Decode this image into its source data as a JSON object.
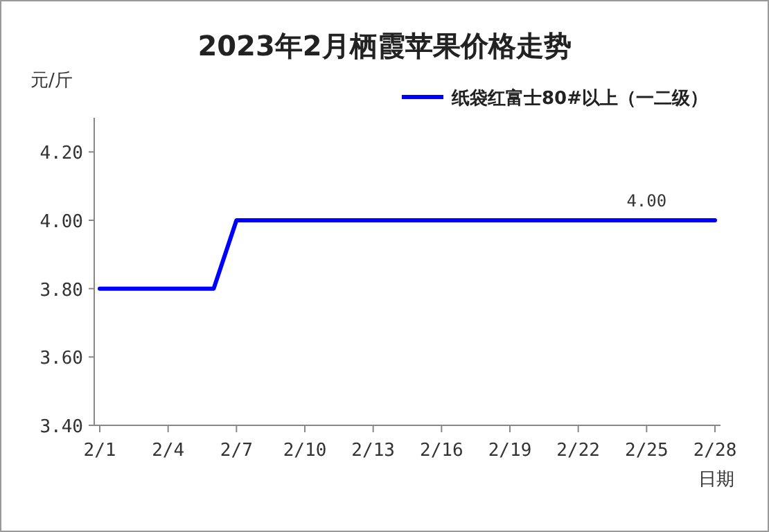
{
  "chart_data": {
    "type": "line",
    "title": "2023年2月栖霞苹果价格走势",
    "ylabel": "元/斤",
    "xlabel": "日期",
    "categories": [
      "2/1",
      null,
      null,
      "2/4",
      null,
      null,
      "2/7",
      null,
      null,
      "2/10",
      null,
      null,
      "2/13",
      null,
      null,
      "2/16",
      null,
      null,
      "2/19",
      null,
      null,
      "2/22",
      null,
      null,
      "2/25",
      null,
      null,
      "2/28"
    ],
    "series": [
      {
        "name": "纸袋红富士80#以上（一二级）",
        "color": "#0000ff",
        "values": [
          3.8,
          3.8,
          3.8,
          3.8,
          3.8,
          3.8,
          4.0,
          4.0,
          4.0,
          4.0,
          4.0,
          4.0,
          4.0,
          4.0,
          4.0,
          4.0,
          4.0,
          4.0,
          4.0,
          4.0,
          4.0,
          4.0,
          4.0,
          4.0,
          4.0,
          4.0,
          4.0,
          4.0
        ],
        "value_labels": [
          null,
          null,
          null,
          null,
          null,
          null,
          null,
          null,
          null,
          null,
          null,
          null,
          null,
          null,
          null,
          null,
          null,
          null,
          null,
          null,
          null,
          null,
          null,
          null,
          "4.00",
          null,
          null,
          null
        ]
      }
    ],
    "ylim": [
      3.4,
      4.3
    ],
    "yticks": [
      {
        "value": 3.4,
        "label": "3.40"
      },
      {
        "value": 3.6,
        "label": "3.60"
      },
      {
        "value": 3.8,
        "label": "3.80"
      },
      {
        "value": 4.0,
        "label": "4.00"
      },
      {
        "value": 4.2,
        "label": "4.20"
      }
    ],
    "grid": false,
    "legend": "top right",
    "marker": "none",
    "line_style": "solid"
  }
}
